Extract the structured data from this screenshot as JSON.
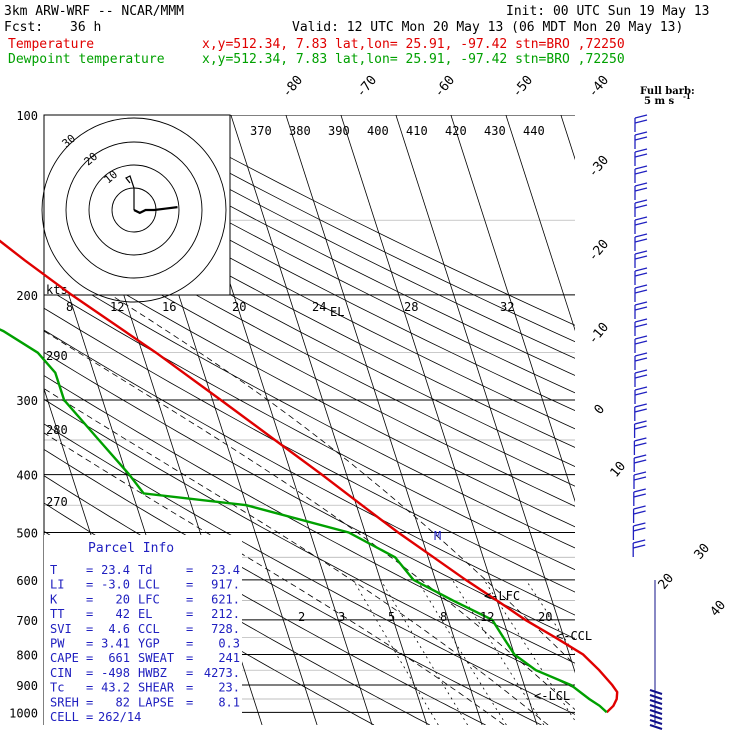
{
  "header": {
    "model": "3km ARW-WRF -- NCAR/MMM",
    "init": "Init: 00 UTC Sun 19 May 13",
    "fcst_label": "Fcst:",
    "fcst_value": "36 h",
    "valid": "Valid: 12 UTC Mon 20 May 13 (06 MDT Mon 20 May 13)",
    "legend": [
      {
        "name": "Temperature",
        "info": "x,y=512.34,  7.83   lat,lon= 25.91, -97.42  stn=BRO ,72250",
        "color": "#e00000"
      },
      {
        "name": "Dewpoint temperature",
        "info": "x,y=512.34,  7.83   lat,lon= 25.91, -97.42  stn=BRO ,72250",
        "color": "#00a000"
      }
    ],
    "barb_key_1": "Full barb:",
    "barb_key_2": "5 m s",
    "barb_key_sup": "-1"
  },
  "chart_data": {
    "type": "line",
    "title": "",
    "pressure_levels": [
      "100",
      "200",
      "300",
      "400",
      "500",
      "600",
      "700",
      "800",
      "900",
      "1000"
    ],
    "temperature_axis_labels": [
      "-80",
      "-70",
      "-60",
      "-50",
      "-40",
      "-30",
      "-20",
      "-10",
      "0",
      "10",
      "20",
      "30",
      "40"
    ],
    "theta_labels": [
      "370",
      "380",
      "390",
      "400",
      "410",
      "420",
      "430",
      "440"
    ],
    "theta_e_labels": [
      "290",
      "280",
      "270"
    ],
    "mixing_ratio_labels": [
      "2",
      "3",
      "5",
      "8",
      "12",
      "20"
    ],
    "hodograph_ring_labels": [
      "30",
      "20",
      "10"
    ],
    "hodograph_speed_labels": [
      "kts",
      "8",
      "12",
      "16",
      "20",
      "24",
      "28",
      "32"
    ],
    "markers": {
      "el": "EL",
      "lfc": "<-LFC",
      "ccl": "<-CCL",
      "lcl": "<-LCL",
      "m": "M"
    },
    "series": [
      {
        "name": "Temperature",
        "color": "#e00000",
        "points": [
          [
            1000,
            23.4
          ],
          [
            975,
            25.0
          ],
          [
            950,
            26.0
          ],
          [
            925,
            26.5
          ],
          [
            900,
            26.0
          ],
          [
            850,
            24.5
          ],
          [
            800,
            22.5
          ],
          [
            750,
            18.5
          ],
          [
            700,
            14.0
          ],
          [
            650,
            10.0
          ],
          [
            600,
            5.5
          ],
          [
            550,
            1.0
          ],
          [
            500,
            -4.0
          ],
          [
            450,
            -9.0
          ],
          [
            400,
            -14.5
          ],
          [
            350,
            -21.0
          ],
          [
            300,
            -28.5
          ],
          [
            250,
            -37.5
          ],
          [
            200,
            -49.5
          ],
          [
            175,
            -56.0
          ],
          [
            150,
            -63.0
          ],
          [
            130,
            -70.0
          ],
          [
            115,
            -72.0
          ],
          [
            100,
            -70.0
          ]
        ]
      },
      {
        "name": "Dewpoint temperature",
        "color": "#00a000",
        "points": [
          [
            1000,
            23.4
          ],
          [
            975,
            22.5
          ],
          [
            950,
            21.0
          ],
          [
            900,
            18.5
          ],
          [
            850,
            13.0
          ],
          [
            800,
            10.0
          ],
          [
            750,
            9.0
          ],
          [
            700,
            8.0
          ],
          [
            650,
            2.0
          ],
          [
            600,
            -4.0
          ],
          [
            550,
            -6.0
          ],
          [
            500,
            -13.0
          ],
          [
            450,
            -30.0
          ],
          [
            430,
            -48.0
          ],
          [
            400,
            -49.5
          ],
          [
            350,
            -53.0
          ],
          [
            300,
            -57.0
          ],
          [
            270,
            -57.0
          ],
          [
            250,
            -59.0
          ],
          [
            230,
            -64.0
          ],
          [
            200,
            -77.0
          ],
          [
            175,
            -87.0
          ],
          [
            150,
            -90.0
          ],
          [
            125,
            -89.0
          ],
          [
            100,
            -88.0
          ]
        ]
      }
    ],
    "hodograph": [
      [
        0,
        0
      ],
      [
        2,
        1
      ],
      [
        4,
        0
      ],
      [
        7,
        0
      ],
      [
        11,
        -0.5
      ],
      [
        15,
        -1
      ]
    ],
    "parcel_info": {
      "title": "Parcel Info",
      "rows": [
        [
          "T",
          "23.4",
          "Td",
          "23.4"
        ],
        [
          "LI",
          "-3.0",
          "LCL",
          "917."
        ],
        [
          "K",
          "20",
          "LFC",
          "621."
        ],
        [
          "TT",
          "42",
          "EL",
          "212."
        ],
        [
          "SVI",
          "4.6",
          "CCL",
          "728."
        ],
        [
          "PW",
          "3.41",
          "YGP",
          "0.3"
        ],
        [
          "CAPE",
          "661",
          "SWEAT",
          "241"
        ],
        [
          "CIN",
          "-498",
          "HWBZ",
          "4273."
        ],
        [
          "Tc",
          "43.2",
          "SHEAR",
          "23."
        ],
        [
          "SREH",
          "82",
          "LAPSE",
          "8.1"
        ]
      ],
      "cell_label": "CELL",
      "cell_value": "262/14"
    }
  }
}
